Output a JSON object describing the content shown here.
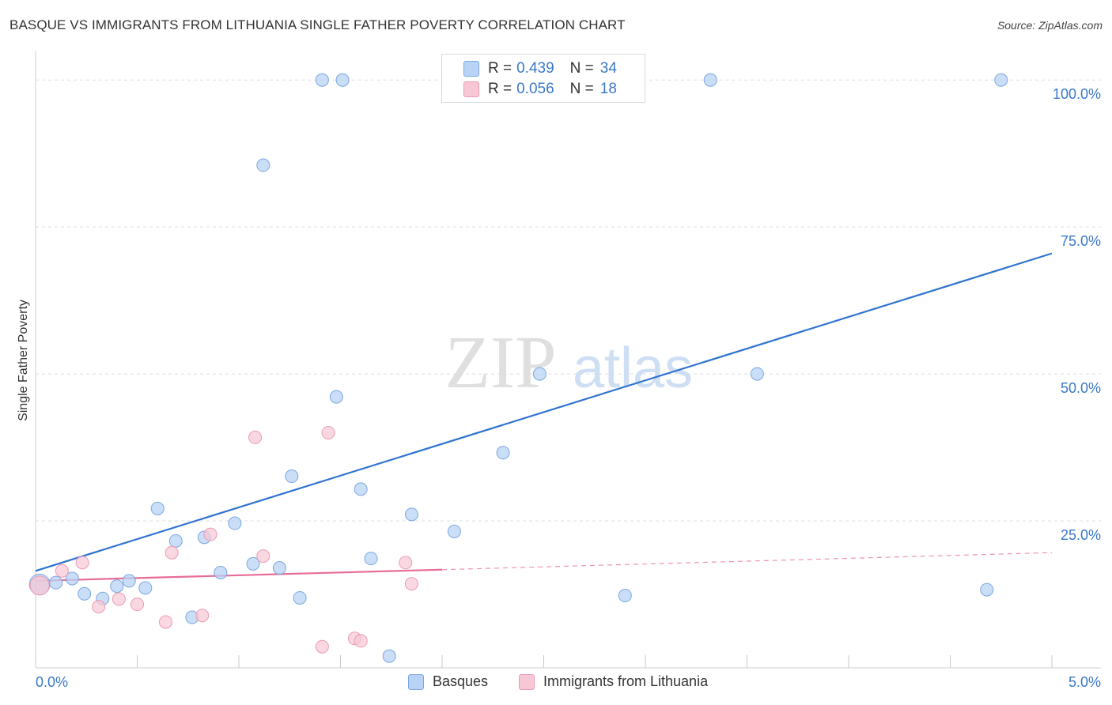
{
  "header": {
    "title": "BASQUE VS IMMIGRANTS FROM LITHUANIA SINGLE FATHER POVERTY CORRELATION CHART",
    "source": "Source: ZipAtlas.com"
  },
  "watermark": {
    "zip": "ZIP",
    "atlas": "atlas"
  },
  "colors": {
    "blue_fill": "#b8d3f5",
    "blue_stroke": "#7ba7e0",
    "blue_line": "#2f74d0",
    "pink_fill": "#f8c7d6",
    "pink_stroke": "#eb9ab3",
    "pink_line": "#e76d98",
    "axis_label": "#3a78c8",
    "grid": "#dcdcdc"
  },
  "legend": {
    "rows": [
      {
        "r_label": "R =",
        "r_value": "0.439",
        "n_label": "N =",
        "n_value": "34"
      },
      {
        "r_label": "R =",
        "r_value": "0.056",
        "n_label": "N =",
        "n_value": "18"
      }
    ],
    "bottom": [
      "Basques",
      "Immigrants from Lithuania"
    ]
  },
  "chart_data": {
    "type": "scatter",
    "ylabel": "Single Father Poverty",
    "x_tick_labels": [
      "0.0%",
      "5.0%"
    ],
    "y_tick_labels": [
      "100.0%",
      "75.0%",
      "50.0%",
      "25.0%"
    ],
    "xlim": [
      0,
      5
    ],
    "ylim": [
      0,
      105
    ],
    "grid": true,
    "legend_placement": "top-center",
    "series": [
      {
        "name": "Basques",
        "points": [
          [
            0.02,
            14.2
          ],
          [
            0.1,
            14.5
          ],
          [
            0.18,
            15.2
          ],
          [
            0.24,
            12.6
          ],
          [
            0.33,
            11.8
          ],
          [
            0.4,
            13.9
          ],
          [
            0.46,
            14.8
          ],
          [
            0.54,
            13.6
          ],
          [
            0.6,
            27.1
          ],
          [
            0.69,
            21.6
          ],
          [
            0.77,
            8.6
          ],
          [
            0.83,
            22.2
          ],
          [
            0.91,
            16.2
          ],
          [
            0.98,
            24.6
          ],
          [
            1.07,
            17.7
          ],
          [
            1.12,
            85.5
          ],
          [
            1.2,
            17.0
          ],
          [
            1.26,
            32.6
          ],
          [
            1.3,
            11.9
          ],
          [
            1.41,
            100.0
          ],
          [
            1.48,
            46.1
          ],
          [
            1.51,
            100.0
          ],
          [
            1.6,
            30.4
          ],
          [
            1.65,
            18.6
          ],
          [
            1.74,
            2.0
          ],
          [
            1.85,
            26.1
          ],
          [
            2.06,
            23.2
          ],
          [
            2.3,
            36.6
          ],
          [
            2.48,
            50.0
          ],
          [
            2.9,
            12.3
          ],
          [
            3.32,
            100.0
          ],
          [
            3.55,
            50.0
          ],
          [
            4.68,
            13.3
          ],
          [
            4.75,
            100.0
          ]
        ],
        "trend": {
          "x": [
            0,
            5
          ],
          "y": [
            16.5,
            70.5
          ]
        }
      },
      {
        "name": "Immigrants from Lithuania",
        "points": [
          [
            0.02,
            14.0
          ],
          [
            0.13,
            16.5
          ],
          [
            0.23,
            17.9
          ],
          [
            0.31,
            10.4
          ],
          [
            0.41,
            11.7
          ],
          [
            0.5,
            10.8
          ],
          [
            0.64,
            7.8
          ],
          [
            0.67,
            19.6
          ],
          [
            0.82,
            8.9
          ],
          [
            0.86,
            22.7
          ],
          [
            1.08,
            39.2
          ],
          [
            1.12,
            19.0
          ],
          [
            1.41,
            3.6
          ],
          [
            1.44,
            40.0
          ],
          [
            1.57,
            5.0
          ],
          [
            1.6,
            4.6
          ],
          [
            1.82,
            17.9
          ],
          [
            1.85,
            14.3
          ]
        ],
        "trend": {
          "x": [
            0,
            2,
            5
          ],
          "y": [
            14.8,
            16.7,
            19.6
          ],
          "solid_until": 2
        }
      }
    ]
  }
}
